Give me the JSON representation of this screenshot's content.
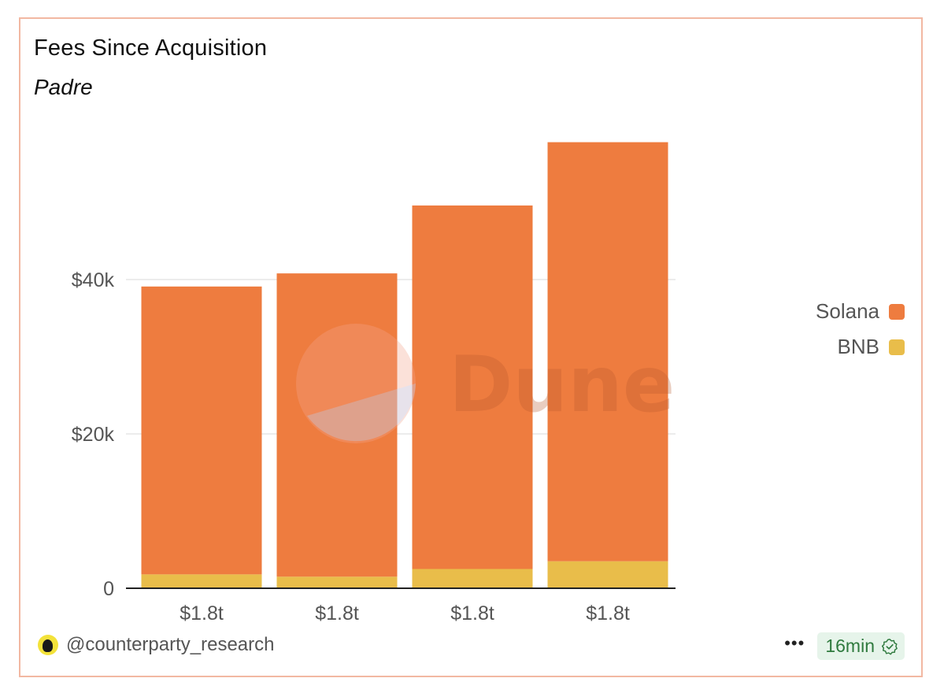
{
  "header": {
    "title": "Fees Since Acquisition",
    "subtitle": "Padre"
  },
  "footer": {
    "username": "@counterparty_research",
    "more_label": "•••",
    "updated": "16min"
  },
  "watermark": "Dune",
  "colors": {
    "solana": "#ee7c3f",
    "bnb": "#e9bd4a",
    "card_border": "#f2b8a2",
    "badge_bg": "#e6f4ea",
    "badge_text": "#2f7a3e"
  },
  "chart_data": {
    "type": "bar",
    "stacked": true,
    "title": "Fees Since Acquisition",
    "subtitle": "Padre",
    "categories": [
      "$1.8t",
      "$1.8t",
      "$1.8t",
      "$1.8t"
    ],
    "series": [
      {
        "name": "Solana",
        "color": "#ee7c3f",
        "values": [
          37300,
          39300,
          47100,
          54300
        ]
      },
      {
        "name": "BNB",
        "color": "#e9bd4a",
        "values": [
          1800,
          1500,
          2500,
          3500
        ]
      }
    ],
    "y_ticks": [
      {
        "value": 0,
        "label": "0"
      },
      {
        "value": 20000,
        "label": "$20k"
      },
      {
        "value": 40000,
        "label": "$40k"
      }
    ],
    "ylim": [
      0,
      60000
    ],
    "grid": true,
    "legend_position": "right",
    "legend": [
      {
        "name": "Solana",
        "color": "#ee7c3f"
      },
      {
        "name": "BNB",
        "color": "#e9bd4a"
      }
    ]
  }
}
